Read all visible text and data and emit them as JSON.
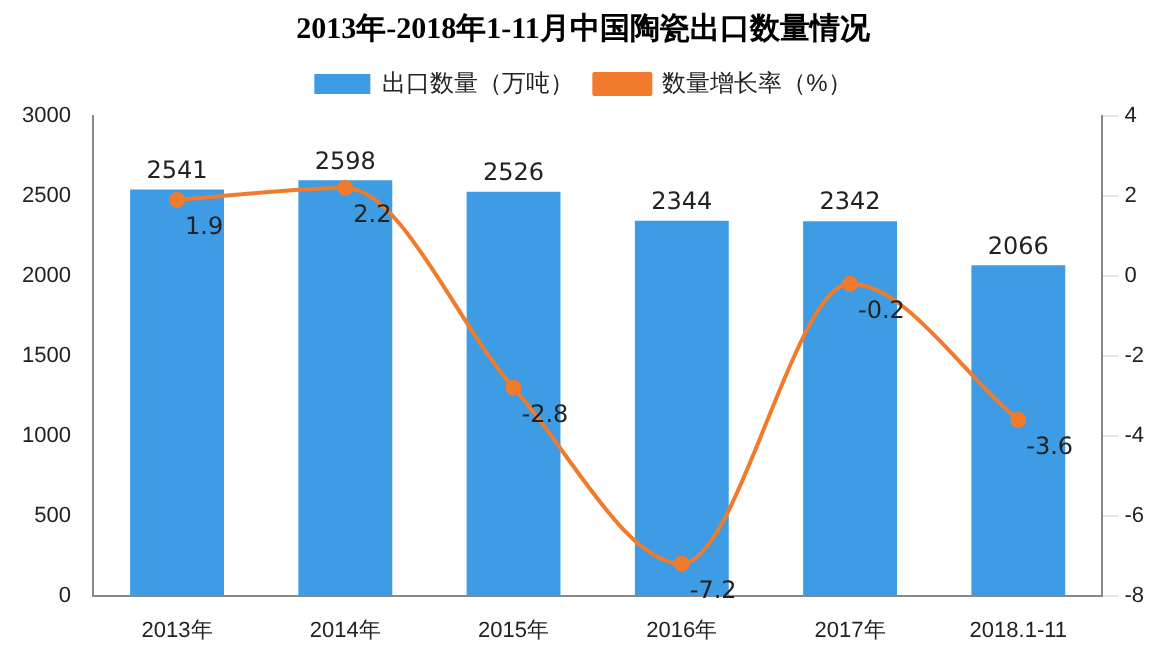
{
  "chart_data": {
    "type": "bar",
    "title": "2013年-2018年1-11月中国陶瓷出口数量情况",
    "categories": [
      "2013年",
      "2014年",
      "2015年",
      "2016年",
      "2017年",
      "2018.1-11"
    ],
    "series": [
      {
        "name": "出口数量（万吨）",
        "color": "#3d9ce3",
        "values": [
          2541,
          2598,
          2526,
          2344,
          2342,
          2066
        ]
      },
      {
        "name": "数量增长率（%）",
        "type": "line",
        "axis": "y2",
        "color": "#f07b2c",
        "values": [
          1.9,
          2.2,
          -2.8,
          -7.2,
          -0.2,
          -3.6
        ]
      }
    ],
    "ylim": [
      0,
      3000
    ],
    "yticks": [
      0,
      500,
      1000,
      1500,
      2000,
      2500,
      3000
    ],
    "y2lim": [
      -8,
      4
    ],
    "y2ticks": [
      -8,
      -6,
      -4,
      -2,
      0,
      2,
      4
    ],
    "legend": "top",
    "grid": false,
    "marker": "circle",
    "line_style": "solid",
    "data_labels": true
  }
}
